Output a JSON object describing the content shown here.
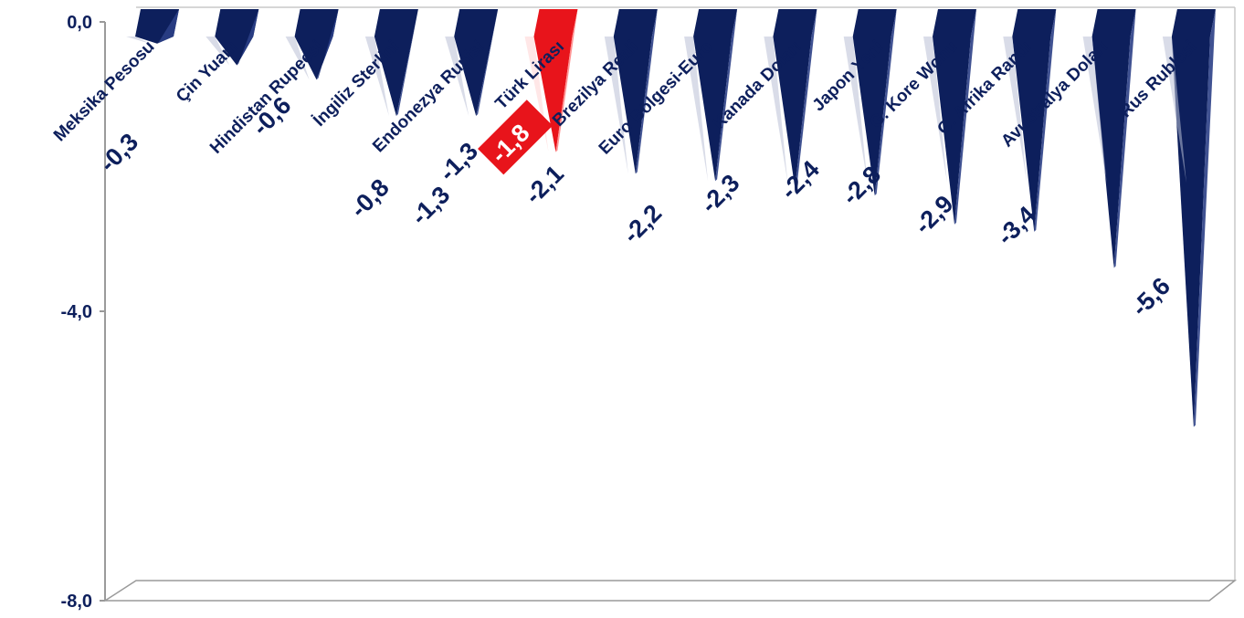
{
  "chart_data": {
    "type": "bar",
    "categories": [
      "Meksika Pesosu",
      "Çin Yuanı",
      "Hindistan Rupeesi",
      "İngiliz Sterlini",
      "Endonezya Rupisi",
      "Türk Lirası",
      "Brezilya Reali",
      "Euro Bölgesi-Euro",
      "Kanada Doları",
      "Japon Yeni",
      "G. Kore Wonu",
      "G. Afrika Randı",
      "Avustralya Doları",
      "Rus Rublesi"
    ],
    "values": [
      -0.3,
      -0.6,
      -0.8,
      -1.3,
      -1.3,
      -1.8,
      -2.1,
      -2.2,
      -2.3,
      -2.4,
      -2.8,
      -2.9,
      -3.4,
      -5.6
    ],
    "value_labels": [
      "-0,3",
      "-0,6",
      "-0,8",
      "-1,3",
      "-1,3",
      "-1,8",
      "-2,1",
      "-2,2",
      "-2,3",
      "-2,4",
      "-2,8",
      "-2,9",
      "-3,4",
      "-5,6"
    ],
    "highlight": "Türk Lirası",
    "ylim": [
      -8.0,
      0.0
    ],
    "yticks": [
      0.0,
      -4.0,
      -8.0
    ],
    "ytick_labels": [
      "0,0",
      "-4,0",
      "-8,0"
    ],
    "colors": {
      "bar": "#0d1f5c",
      "highlight": "#e8141b",
      "text": "#0d1f5c"
    },
    "grid": false,
    "legend": "none"
  }
}
